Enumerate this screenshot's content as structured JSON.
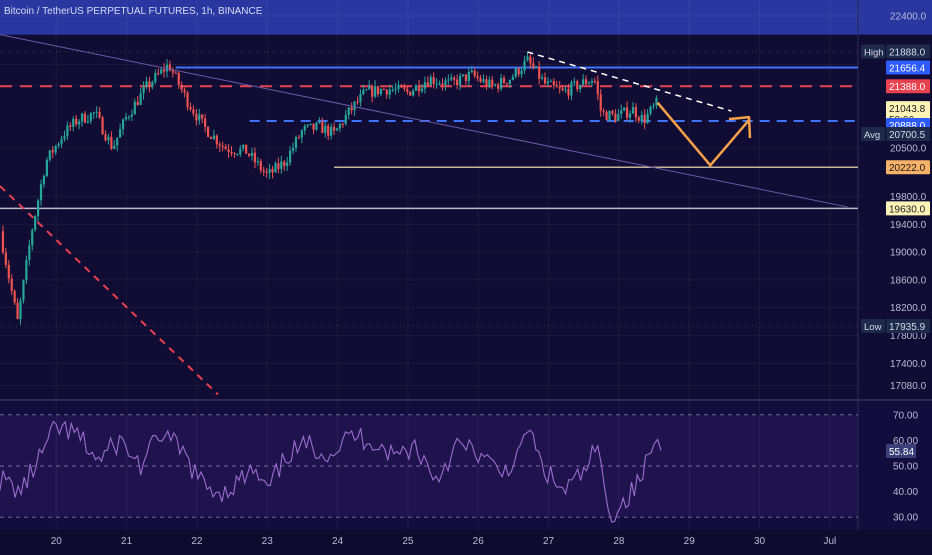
{
  "header": {
    "title": "Bitcoin / TetherUS PERPETUAL FUTURES, 1h, BINANCE"
  },
  "colors": {
    "background": "#100c33",
    "price_band": "#2f3fb5",
    "candle_up": "#26a69a",
    "candle_down": "#ef5350",
    "blue_line": "#3f73ff",
    "red_dash": "#e8414f",
    "arrow": "#f7a14a",
    "support_line": "#c8b49a",
    "rsi_line": "#9b6ccf",
    "rsi_band": "#2a1a5c"
  },
  "chart_data": [
    {
      "type": "candlestick",
      "title": "Bitcoin / TetherUS PERPETUAL FUTURES, 1h, BINANCE",
      "ylim": [
        16900,
        22600
      ],
      "y_ticks": [
        22400,
        21700,
        21400,
        20500,
        19800,
        19400,
        19000,
        18600,
        18200,
        17800,
        17400,
        17080
      ],
      "x_ticks": [
        {
          "label": "20",
          "day": 20
        },
        {
          "label": "21",
          "day": 21
        },
        {
          "label": "22",
          "day": 22
        },
        {
          "label": "23",
          "day": 23
        },
        {
          "label": "24",
          "day": 24
        },
        {
          "label": "25",
          "day": 25
        },
        {
          "label": "26",
          "day": 26
        },
        {
          "label": "27",
          "day": 27
        },
        {
          "label": "28",
          "day": 28
        },
        {
          "label": "29",
          "day": 29
        },
        {
          "label": "30",
          "day": 30
        },
        {
          "label": "Jul",
          "day": 31
        }
      ],
      "xlim_days": [
        19.2,
        31.4
      ],
      "price_path": [
        {
          "day": 19.2,
          "price": 19300
        },
        {
          "day": 19.45,
          "price": 18000
        },
        {
          "day": 19.65,
          "price": 19300
        },
        {
          "day": 19.85,
          "price": 20300
        },
        {
          "day": 20.1,
          "price": 20700
        },
        {
          "day": 20.3,
          "price": 20900
        },
        {
          "day": 20.55,
          "price": 21000
        },
        {
          "day": 20.8,
          "price": 20500
        },
        {
          "day": 21.0,
          "price": 20950
        },
        {
          "day": 21.3,
          "price": 21400
        },
        {
          "day": 21.6,
          "price": 21700
        },
        {
          "day": 21.85,
          "price": 21200
        },
        {
          "day": 22.1,
          "price": 20800
        },
        {
          "day": 22.4,
          "price": 20500
        },
        {
          "day": 22.7,
          "price": 20450
        },
        {
          "day": 23.0,
          "price": 20100
        },
        {
          "day": 23.25,
          "price": 20300
        },
        {
          "day": 23.5,
          "price": 20750
        },
        {
          "day": 23.75,
          "price": 20800
        },
        {
          "day": 23.95,
          "price": 20700
        },
        {
          "day": 24.15,
          "price": 21000
        },
        {
          "day": 24.4,
          "price": 21300
        },
        {
          "day": 24.7,
          "price": 21350
        },
        {
          "day": 25.0,
          "price": 21300
        },
        {
          "day": 25.3,
          "price": 21500
        },
        {
          "day": 25.6,
          "price": 21420
        },
        {
          "day": 25.9,
          "price": 21550
        },
        {
          "day": 26.2,
          "price": 21380
        },
        {
          "day": 26.45,
          "price": 21500
        },
        {
          "day": 26.7,
          "price": 21750
        },
        {
          "day": 26.95,
          "price": 21420
        },
        {
          "day": 27.2,
          "price": 21300
        },
        {
          "day": 27.45,
          "price": 21420
        },
        {
          "day": 27.65,
          "price": 21500
        },
        {
          "day": 27.75,
          "price": 21000
        },
        {
          "day": 27.95,
          "price": 20950
        },
        {
          "day": 28.2,
          "price": 21050
        },
        {
          "day": 28.35,
          "price": 20900
        },
        {
          "day": 28.55,
          "price": 21150
        }
      ],
      "levels": [
        {
          "name": "High",
          "price": 21888.0,
          "label": "21888.0",
          "style": "tag"
        },
        {
          "price": 21656.4,
          "label": "21656.4",
          "style": "solid-blue"
        },
        {
          "price": 21388.0,
          "label": "21388.0",
          "style": "dash-red"
        },
        {
          "price": 21043.8,
          "label": "21043.8",
          "style": "current"
        },
        {
          "price": 20888.0,
          "label": "20888.0",
          "style": "dash-blue"
        },
        {
          "name": "Avg",
          "price": 20700.5,
          "label": "20700.5",
          "style": "tag"
        },
        {
          "price": 20222.0,
          "label": "20222.0",
          "style": "solid-orange"
        },
        {
          "price": 19630.0,
          "label": "19630.0",
          "style": "solid-gray"
        },
        {
          "name": "Low",
          "price": 17935.9,
          "label": "17935.9",
          "style": "tag"
        }
      ],
      "countdown": "50:06",
      "projection": [
        {
          "day": 28.55,
          "price": 21150
        },
        {
          "day": 29.3,
          "price": 20250
        },
        {
          "day": 29.85,
          "price": 20900
        }
      ]
    },
    {
      "type": "line",
      "ylim": [
        25,
        75
      ],
      "y_ticks": [
        70.0,
        60.0,
        50.0,
        40.0,
        30.0
      ],
      "y_tick_labels": [
        "70.00",
        "60.00",
        "50.00",
        "40.00",
        "30.00"
      ],
      "bands": [
        30,
        50,
        70
      ],
      "current_value": "55.84",
      "rsi_path": [
        {
          "day": 19.2,
          "value": 45
        },
        {
          "day": 19.5,
          "value": 40
        },
        {
          "day": 19.8,
          "value": 55
        },
        {
          "day": 20.0,
          "value": 65
        },
        {
          "day": 20.3,
          "value": 62
        },
        {
          "day": 20.6,
          "value": 52
        },
        {
          "day": 20.9,
          "value": 60
        },
        {
          "day": 21.2,
          "value": 50
        },
        {
          "day": 21.5,
          "value": 63
        },
        {
          "day": 21.8,
          "value": 55
        },
        {
          "day": 22.1,
          "value": 42
        },
        {
          "day": 22.4,
          "value": 40
        },
        {
          "day": 22.8,
          "value": 48
        },
        {
          "day": 23.0,
          "value": 40
        },
        {
          "day": 23.3,
          "value": 55
        },
        {
          "day": 23.6,
          "value": 58
        },
        {
          "day": 23.9,
          "value": 55
        },
        {
          "day": 24.2,
          "value": 62
        },
        {
          "day": 24.5,
          "value": 60
        },
        {
          "day": 24.8,
          "value": 54
        },
        {
          "day": 25.1,
          "value": 58
        },
        {
          "day": 25.4,
          "value": 45
        },
        {
          "day": 25.7,
          "value": 58
        },
        {
          "day": 26.0,
          "value": 55
        },
        {
          "day": 26.3,
          "value": 47
        },
        {
          "day": 26.6,
          "value": 54
        },
        {
          "day": 26.7,
          "value": 66
        },
        {
          "day": 26.9,
          "value": 50
        },
        {
          "day": 27.2,
          "value": 40
        },
        {
          "day": 27.5,
          "value": 47
        },
        {
          "day": 27.7,
          "value": 58
        },
        {
          "day": 27.8,
          "value": 38
        },
        {
          "day": 27.9,
          "value": 31
        },
        {
          "day": 28.1,
          "value": 37
        },
        {
          "day": 28.3,
          "value": 44
        },
        {
          "day": 28.5,
          "value": 60
        },
        {
          "day": 28.6,
          "value": 56
        }
      ]
    }
  ]
}
